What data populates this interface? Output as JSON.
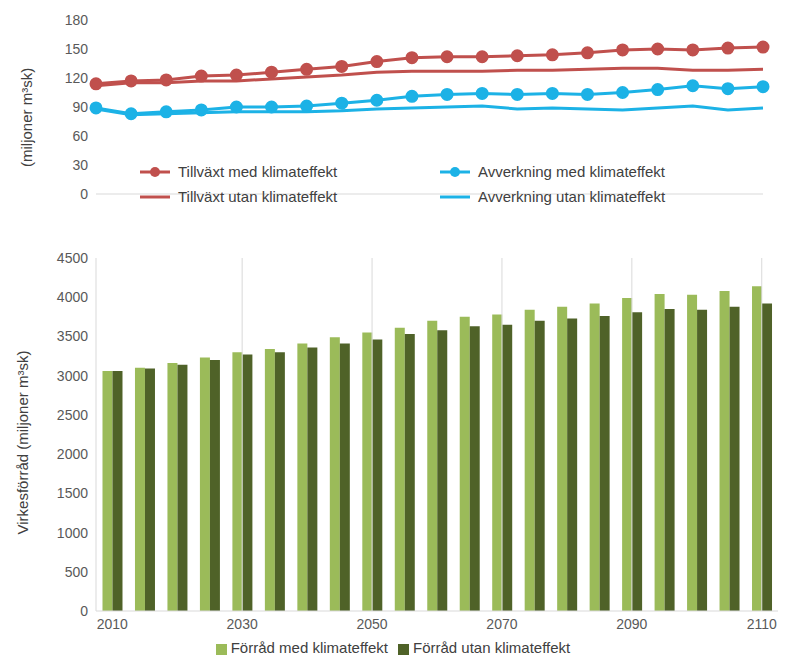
{
  "chart_data": [
    {
      "type": "line",
      "categories": [
        null,
        null,
        null,
        null,
        null,
        null,
        null,
        null,
        null,
        null,
        null,
        null,
        null,
        null,
        null,
        null,
        null,
        null,
        null,
        null
      ],
      "y_label": "(miljoner m³sk)",
      "ylim": [
        0,
        180
      ],
      "yticks": [
        0,
        30,
        60,
        90,
        120,
        150,
        180
      ],
      "tick_labels": "y",
      "legend": "bottom",
      "grid": false,
      "series": [
        {
          "name": "Tillväxt med klimateffekt",
          "color": "#C0504D",
          "marker": "circle",
          "values": [
            114,
            117,
            118,
            122,
            123,
            126,
            129,
            132,
            137,
            141,
            142,
            142,
            143,
            144,
            146,
            149,
            150,
            149,
            151,
            152
          ]
        },
        {
          "name": "Avverkning med klimateffekt",
          "color": "#1CB2E6",
          "marker": "circle",
          "values": [
            89,
            83,
            85,
            87,
            90,
            90,
            91,
            94,
            97,
            101,
            103,
            104,
            103,
            104,
            103,
            105,
            108,
            112,
            109,
            111
          ]
        },
        {
          "name": "Tillväxt utan klimateffekt",
          "color": "#C0504D",
          "marker": "none",
          "values": [
            112,
            115,
            115,
            117,
            117,
            119,
            121,
            123,
            126,
            127,
            127,
            127,
            128,
            128,
            129,
            130,
            130,
            128,
            128,
            129
          ]
        },
        {
          "name": "Avverkning utan klimateffekt",
          "color": "#1CB2E6",
          "marker": "none",
          "values": [
            88,
            82,
            83,
            84,
            85,
            85,
            85,
            86,
            88,
            89,
            90,
            91,
            88,
            89,
            88,
            87,
            89,
            91,
            87,
            89
          ]
        }
      ]
    },
    {
      "type": "bar",
      "categories": [
        2010,
        null,
        null,
        null,
        2030,
        null,
        null,
        null,
        2050,
        null,
        null,
        null,
        2070,
        null,
        null,
        null,
        2090,
        null,
        null,
        null,
        2110
      ],
      "y_label": "Virkesförråd (miljoner m³sk)",
      "ylim": [
        0,
        4500
      ],
      "yticks": [
        0,
        500,
        1000,
        1500,
        2000,
        2500,
        3000,
        3500,
        4000,
        4500
      ],
      "grid": true,
      "legend": "bottom",
      "series": [
        {
          "name": "Förråd med klimateffekt",
          "color": "#9BBB59",
          "values": [
            3060,
            3100,
            3160,
            3230,
            3300,
            3340,
            3410,
            3490,
            3550,
            3610,
            3700,
            3750,
            3780,
            3840,
            3880,
            3920,
            3990,
            4040,
            4030,
            4080,
            4140
          ]
        },
        {
          "name": "Förråd utan klimateffekt",
          "color": "#4F6228",
          "values": [
            3060,
            3090,
            3140,
            3200,
            3270,
            3300,
            3360,
            3410,
            3460,
            3530,
            3580,
            3630,
            3650,
            3700,
            3730,
            3760,
            3810,
            3850,
            3840,
            3880,
            3920
          ]
        }
      ]
    }
  ]
}
